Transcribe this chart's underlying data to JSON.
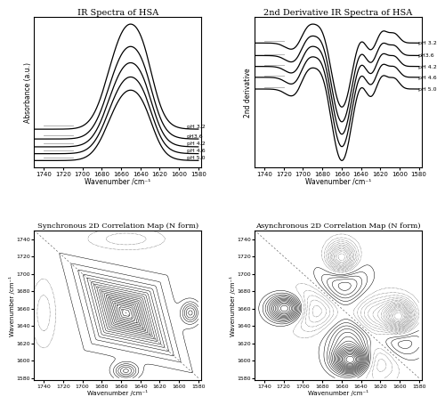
{
  "title_top_left": "IR Spectra of HSA",
  "title_top_right": "2nd Derivative IR Spectra of HSA",
  "title_bot_left": "Synchronous 2D Correlation Map (N form)",
  "title_bot_right": "Asynchronous 2D Correlation Map (N form)",
  "xlabel": "Wavenumber /cm⁻¹",
  "ylabel_left": "Absorbance (a.u.)",
  "ylabel_right": "2nd derivative",
  "ylabel_2d": "Wavenumber /cm⁻¹",
  "ph_labels": [
    "pH 3.2",
    "pH3.6",
    "pH 4.2",
    "pH 4.6",
    "pH 5.0"
  ],
  "ph_labels_right": [
    "pH 3.2",
    "pH3.6",
    "pH 4.2",
    "pH 4.6",
    "pH 5.0"
  ],
  "background_color": "#ffffff"
}
